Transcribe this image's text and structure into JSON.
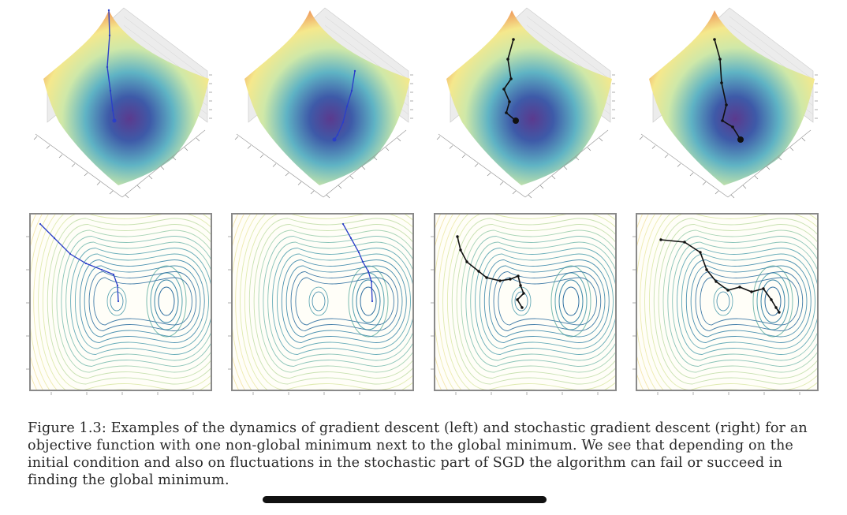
{
  "figure": {
    "caption_label": "Figure 1.3:",
    "caption_lines": [
      "Examples of the dynamics of gradient descent (left) and stochastic gradient descent (right) for an",
      "objective function with one non-global minimum next to the global minimum. We see that depending on the",
      "initial condition and also on fluctuations in the stochastic part of SGD the algorithm can fail or succeed in",
      "finding the global minimum."
    ],
    "panels": [
      {
        "method": "gradient descent",
        "outcome": "local minimum"
      },
      {
        "method": "gradient descent",
        "outcome": "global minimum"
      },
      {
        "method": "stochastic gradient descent",
        "outcome": "local minimum"
      },
      {
        "method": "stochastic gradient descent",
        "outcome": "global minimum"
      }
    ]
  },
  "colors": {
    "gd_path": "#2b3fc8",
    "sgd_path": "#111111",
    "surface_high": "#c0392b",
    "surface_mid": "#f5e88c",
    "surface_low": "#3e5aa8",
    "contour_panel_border": "#8a8a8a",
    "home_indicator": "#111111"
  }
}
